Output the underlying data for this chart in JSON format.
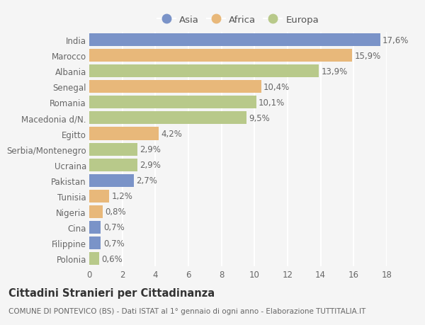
{
  "countries": [
    "India",
    "Marocco",
    "Albania",
    "Senegal",
    "Romania",
    "Macedonia d/N.",
    "Egitto",
    "Serbia/Montenegro",
    "Ucraina",
    "Pakistan",
    "Tunisia",
    "Nigeria",
    "Cina",
    "Filippine",
    "Polonia"
  ],
  "values": [
    17.6,
    15.9,
    13.9,
    10.4,
    10.1,
    9.5,
    4.2,
    2.9,
    2.9,
    2.7,
    1.2,
    0.8,
    0.7,
    0.7,
    0.6
  ],
  "labels": [
    "17,6%",
    "15,9%",
    "13,9%",
    "10,4%",
    "10,1%",
    "9,5%",
    "4,2%",
    "2,9%",
    "2,9%",
    "2,7%",
    "1,2%",
    "0,8%",
    "0,7%",
    "0,7%",
    "0,6%"
  ],
  "continents": [
    "Asia",
    "Africa",
    "Europa",
    "Africa",
    "Europa",
    "Europa",
    "Africa",
    "Europa",
    "Europa",
    "Asia",
    "Africa",
    "Africa",
    "Asia",
    "Asia",
    "Europa"
  ],
  "colors": {
    "Asia": "#7a93c8",
    "Africa": "#e8b87a",
    "Europa": "#b8c98a"
  },
  "xlim": [
    0,
    18
  ],
  "xticks": [
    0,
    2,
    4,
    6,
    8,
    10,
    12,
    14,
    16,
    18
  ],
  "title": "Cittadini Stranieri per Cittadinanza",
  "subtitle": "COMUNE DI PONTEVICO (BS) - Dati ISTAT al 1° gennaio di ogni anno - Elaborazione TUTTITALIA.IT",
  "background_color": "#f5f5f5",
  "grid_color": "#ffffff",
  "bar_height": 0.82,
  "label_fontsize": 8.5,
  "tick_fontsize": 8.5,
  "title_fontsize": 10.5,
  "subtitle_fontsize": 7.5
}
